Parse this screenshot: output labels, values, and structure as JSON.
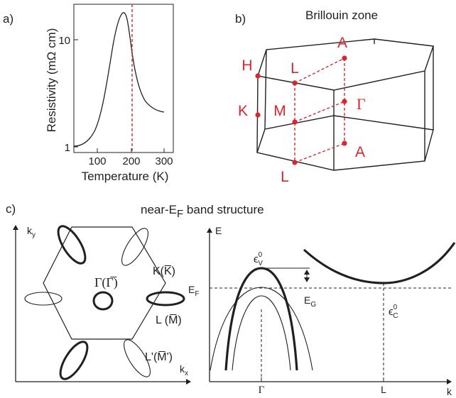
{
  "panel_a": {
    "label": "a)",
    "xlabel": "Temperature (K)",
    "ylabel": "Resistivity (mΩ cm)",
    "xticks": [
      "100",
      "200",
      "300"
    ],
    "yticks": [
      "10",
      "1"
    ],
    "colors": {
      "curve": "#231f20",
      "marker": "#d7262e"
    }
  },
  "panel_b": {
    "label": "b)",
    "title": "Brillouin zone",
    "points": {
      "A_top": "A",
      "A_bottom": "A",
      "H": "H",
      "K": "K",
      "L_top": "L",
      "L_bottom": "L",
      "M": "M",
      "Gamma": "Γ"
    }
  },
  "panel_c": {
    "label": "c)",
    "title_prefix": "near-E",
    "title_sub": "F",
    "title_suffix": " band structure",
    "left": {
      "ky": "k",
      "ky_sub": "y",
      "kx": "k",
      "kx_sub": "x",
      "K_label": "K(K̅)",
      "Gamma_label": "Γ(Γ̅)",
      "L_label": "L (M̅)",
      "Lp_label": "L'(M̅')"
    },
    "right": {
      "E_axis": "E",
      "EF": "E",
      "EF_sub": "F",
      "EG": "E",
      "EG_sub": "G",
      "eps_v": "ϵ",
      "eps_v_sup": "0",
      "eps_v_sub": "V",
      "eps_c": "ϵ",
      "eps_c_sup": "0",
      "eps_c_sub": "C",
      "x_gamma": "Γ",
      "x_L": "L",
      "k_axis": "k"
    }
  }
}
